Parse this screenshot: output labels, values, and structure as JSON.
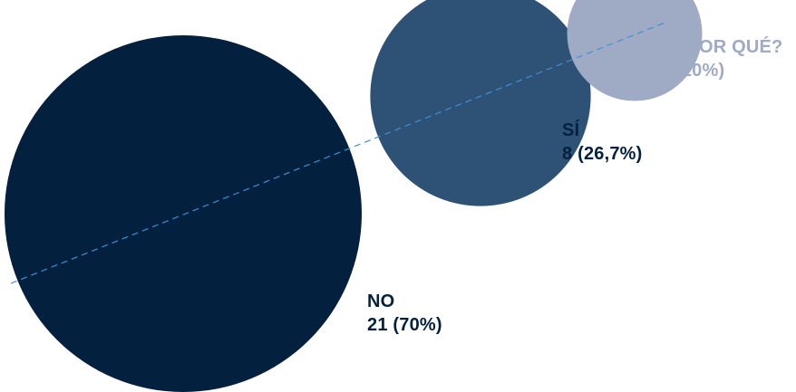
{
  "chart_data": {
    "type": "bubble",
    "title": "",
    "xlabel": "",
    "ylabel": "",
    "grid": false,
    "legend": "none",
    "trend_line": {
      "style": "dashed",
      "color": "#3E8FD4"
    },
    "series": [
      {
        "category": "NO",
        "count": 21,
        "percent_label": "21 (70%)",
        "percent": 70,
        "color": "#03203F",
        "label_color": "#03203F"
      },
      {
        "category": "SÍ",
        "count": 8,
        "percent_label": "8 (26,7%)",
        "percent": 26.7,
        "color": "#2E5276",
        "label_color": "#03203F"
      },
      {
        "category": "¿POR QUÉ?",
        "count": 3,
        "percent_label": "(10%)",
        "percent": 10,
        "color": "#9FABC4",
        "label_color": "#9FABC4"
      }
    ]
  }
}
